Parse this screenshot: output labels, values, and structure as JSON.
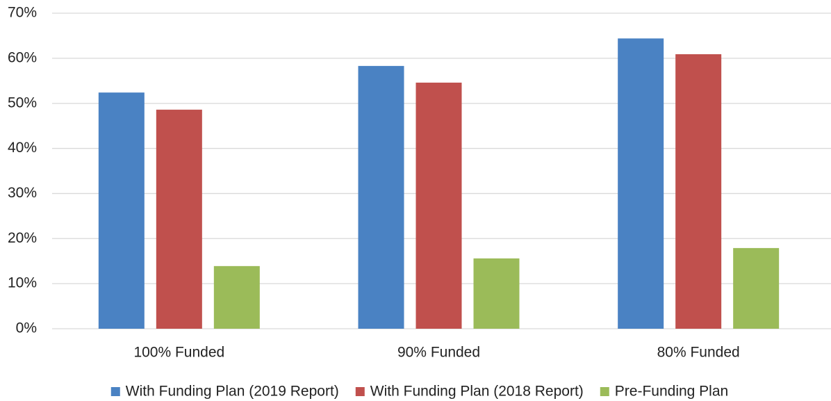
{
  "chart_data": {
    "type": "bar",
    "categories": [
      "100% Funded",
      "90% Funded",
      "80% Funded"
    ],
    "series": [
      {
        "name": "With Funding Plan (2019 Report)",
        "color": "#4a82c3",
        "values": [
          52.4,
          58.3,
          64.4
        ]
      },
      {
        "name": "With Funding Plan (2018 Report)",
        "color": "#c0504d",
        "values": [
          48.6,
          54.6,
          60.9
        ]
      },
      {
        "name": "Pre-Funding Plan",
        "color": "#9bbb59",
        "values": [
          13.9,
          15.6,
          17.9
        ]
      }
    ],
    "ylim": [
      0,
      70
    ],
    "yticks": [
      {
        "value": 0,
        "label": "0%"
      },
      {
        "value": 10,
        "label": "10%"
      },
      {
        "value": 20,
        "label": "20%"
      },
      {
        "value": 30,
        "label": "30%"
      },
      {
        "value": 40,
        "label": "40%"
      },
      {
        "value": 50,
        "label": "50%"
      },
      {
        "value": 60,
        "label": "60%"
      },
      {
        "value": 70,
        "label": "70%"
      }
    ],
    "grid": true,
    "legend": "bottom"
  }
}
